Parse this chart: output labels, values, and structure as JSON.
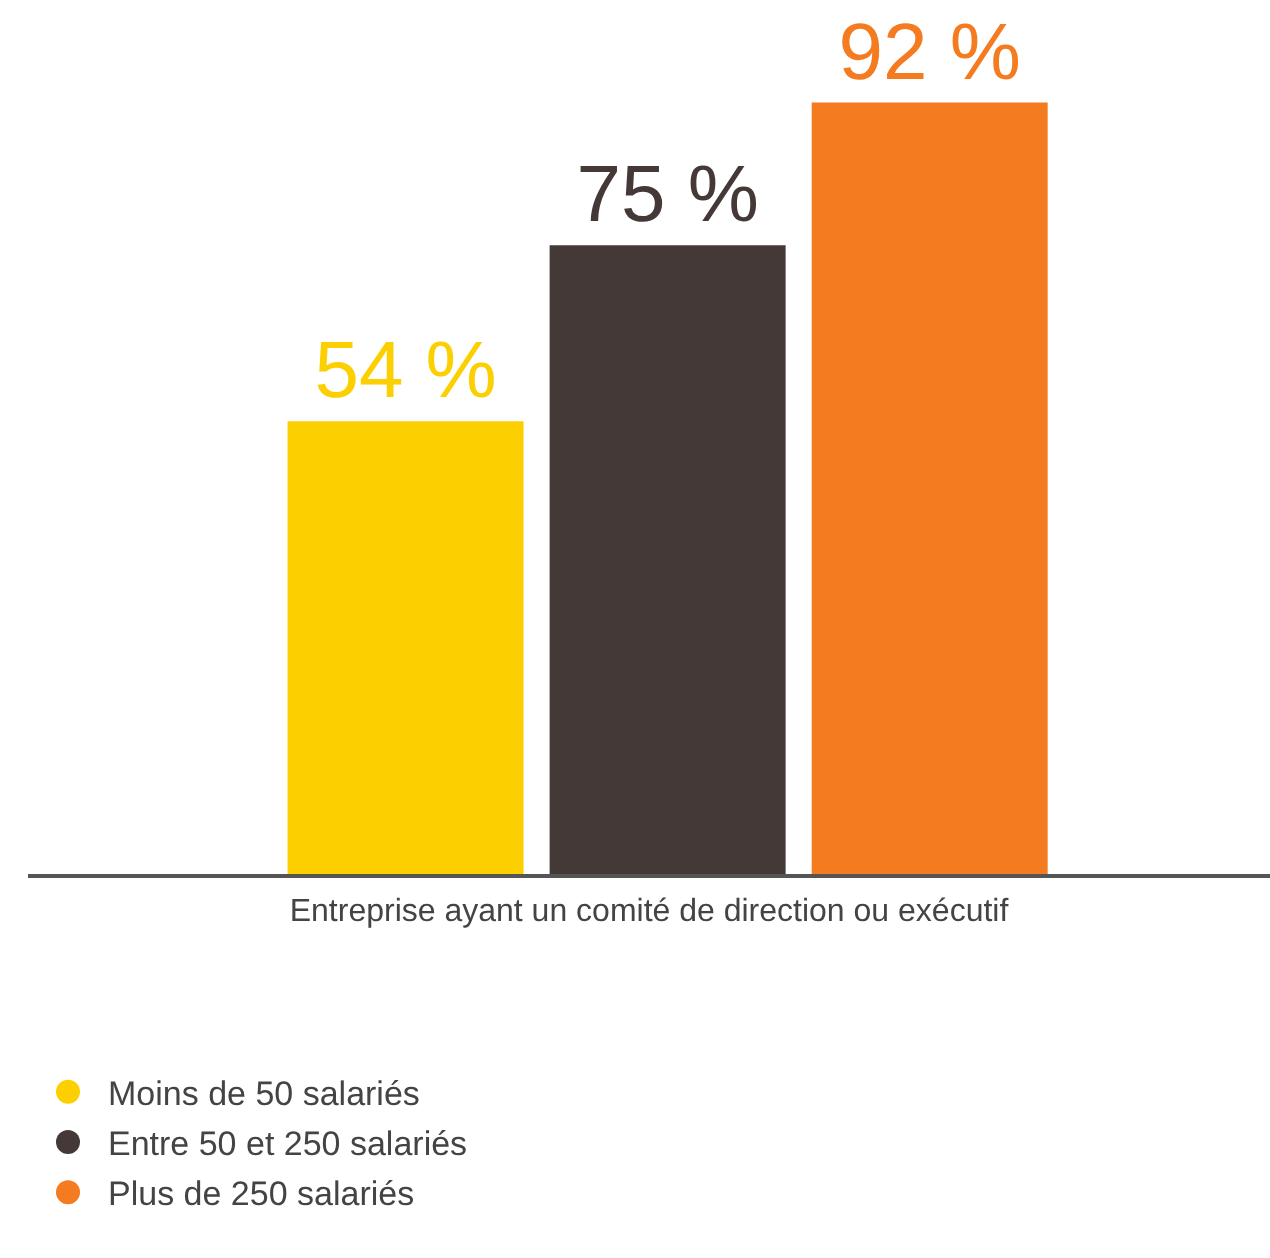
{
  "chart_data": {
    "type": "bar",
    "categories": [
      null
    ],
    "xlabel": "Entreprise ayant un comité de direction ou exécutif",
    "series": [
      {
        "name": "Moins de 50 salariés",
        "color": "#fcd000",
        "values": [
          54
        ],
        "value_labels": [
          "54 %"
        ]
      },
      {
        "name": "Entre 50 et 250 salariés",
        "color": "#453938",
        "values": [
          75
        ],
        "value_labels": [
          "75 %"
        ]
      },
      {
        "name": "Plus de 250 salariés",
        "color": "#f47b20",
        "values": [
          92
        ],
        "value_labels": [
          "92 %"
        ]
      }
    ],
    "legend": "bottom left"
  }
}
